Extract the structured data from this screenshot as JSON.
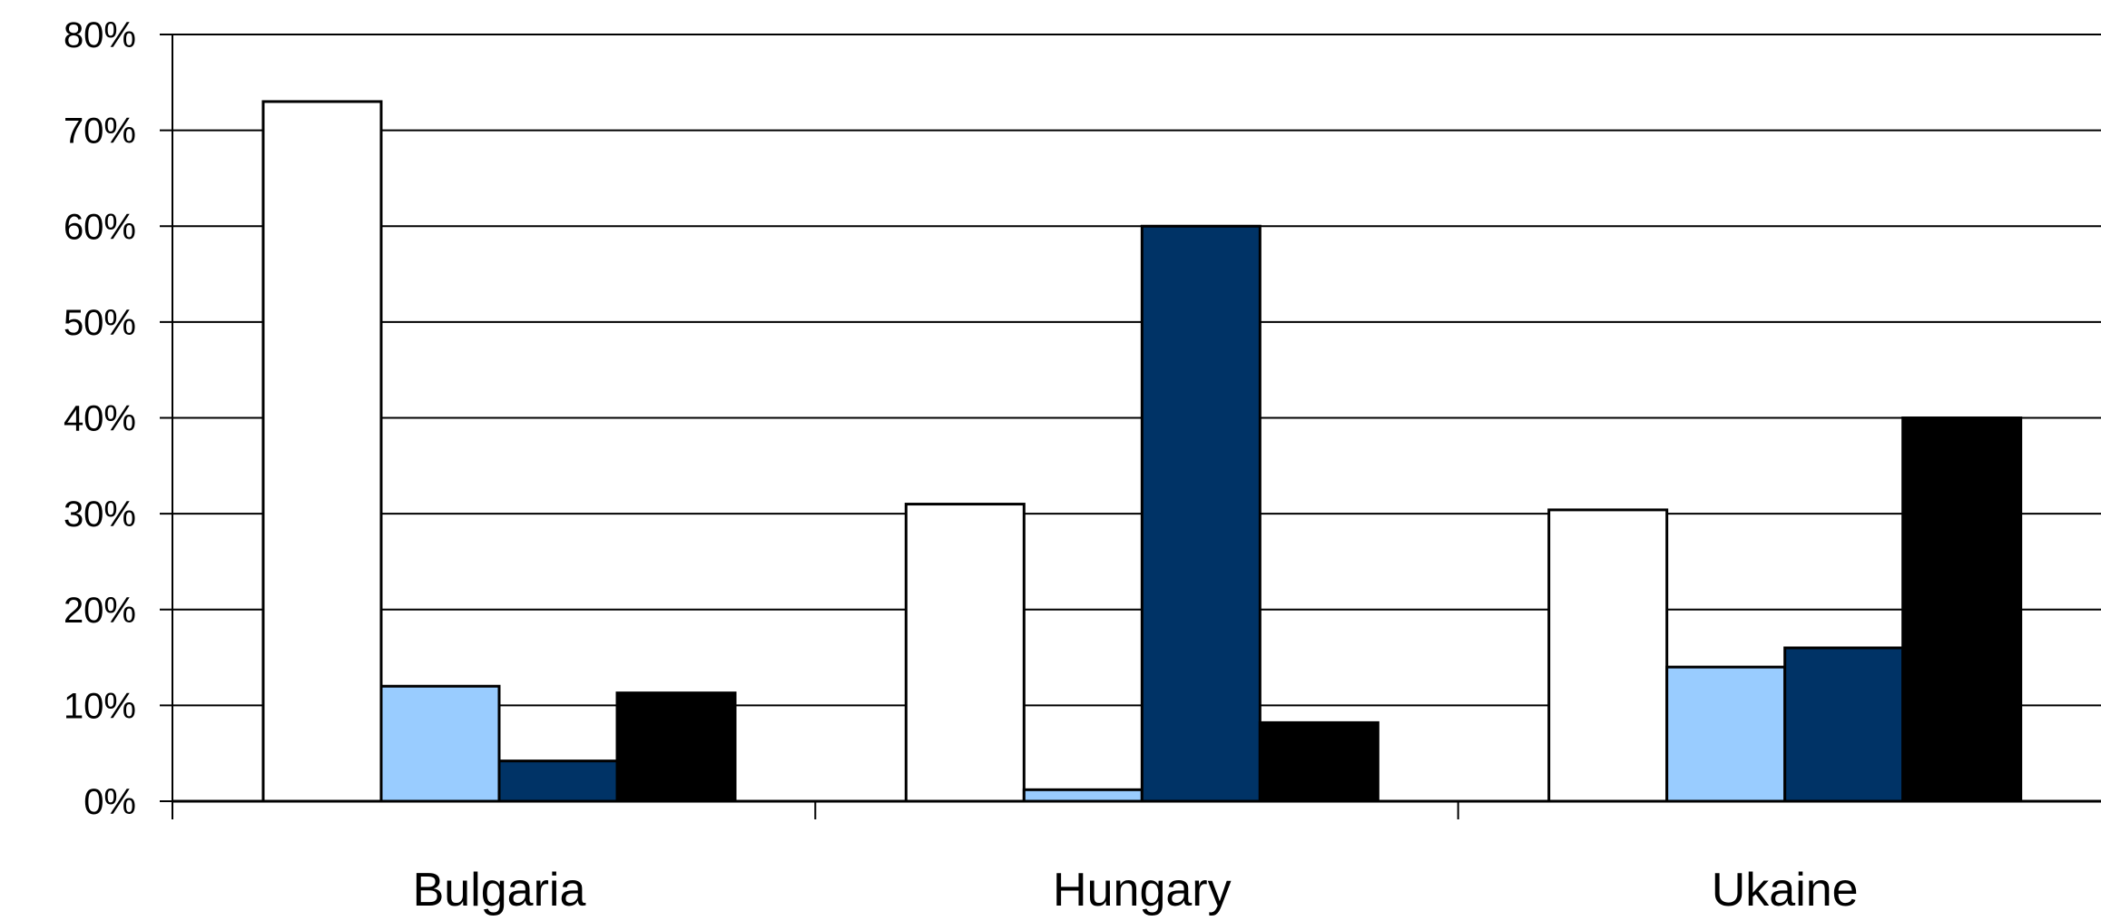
{
  "chart_data": {
    "type": "bar",
    "categories": [
      "Bulgaria",
      "Hungary",
      "Ukaine"
    ],
    "series": [
      {
        "values": [
          73,
          31,
          30.4
        ],
        "color": "#ffffff"
      },
      {
        "values": [
          12,
          1.2,
          14
        ],
        "color": "#99ccff"
      },
      {
        "values": [
          4.2,
          60,
          16
        ],
        "color": "#003366"
      },
      {
        "values": [
          11.3,
          8.2,
          40
        ],
        "color": "#000000"
      }
    ],
    "ylim": [
      0,
      80
    ],
    "y_ticks": [
      0,
      10,
      20,
      30,
      40,
      50,
      60,
      70,
      80
    ],
    "y_tick_labels": [
      "0%",
      "10%",
      "20%",
      "30%",
      "40%",
      "50%",
      "60%",
      "70%",
      "80%"
    ],
    "grid": true,
    "legend": "none",
    "title": "",
    "xlabel": "",
    "ylabel": ""
  }
}
